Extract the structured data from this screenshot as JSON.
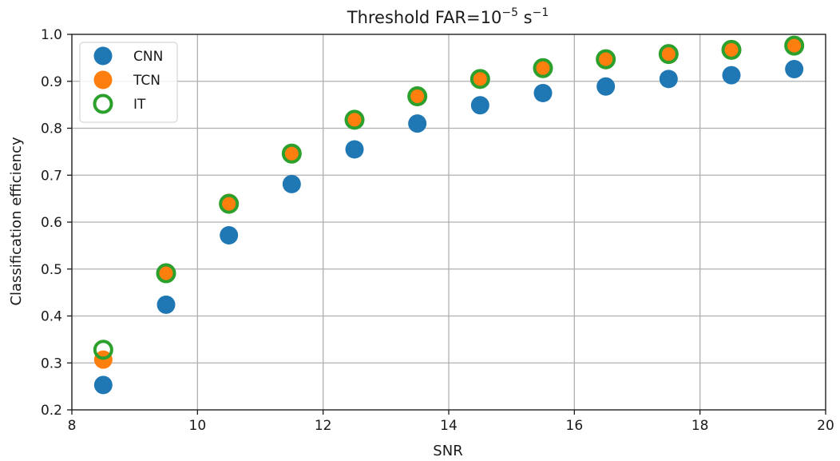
{
  "chart_data": {
    "type": "scatter",
    "title": {
      "prefix": "Threshold FAR=10",
      "exponent": "−5",
      "unit": " s",
      "unit_exponent": "−1"
    },
    "xlabel": "SNR",
    "ylabel": "Classification efficiency",
    "xlim": [
      8,
      20
    ],
    "ylim": [
      0.2,
      1.0
    ],
    "xticks": [
      8,
      10,
      12,
      14,
      16,
      18,
      20
    ],
    "xtick_labels": [
      "8",
      "10",
      "12",
      "14",
      "16",
      "18",
      "20"
    ],
    "yticks": [
      0.2,
      0.3,
      0.4,
      0.5,
      0.6,
      0.7,
      0.8,
      0.9,
      1.0
    ],
    "ytick_labels": [
      "0.2",
      "0.3",
      "0.4",
      "0.5",
      "0.6",
      "0.7",
      "0.8",
      "0.9",
      "1.0"
    ],
    "grid": true,
    "legend_position": "top-left",
    "x": [
      8.5,
      9.5,
      10.5,
      11.5,
      12.5,
      13.5,
      14.5,
      15.5,
      16.5,
      17.5,
      18.5,
      19.5
    ],
    "series": [
      {
        "name": "CNN",
        "marker": "filled-circle",
        "color": "#1f77b4",
        "values": [
          0.253,
          0.424,
          0.572,
          0.681,
          0.755,
          0.81,
          0.849,
          0.875,
          0.889,
          0.905,
          0.913,
          0.926
        ]
      },
      {
        "name": "TCN",
        "marker": "filled-circle",
        "color": "#ff7f0e",
        "values": [
          0.307,
          0.492,
          0.641,
          0.745,
          0.818,
          0.868,
          0.905,
          0.928,
          0.945,
          0.957,
          0.967,
          0.975
        ]
      },
      {
        "name": "IT",
        "marker": "hollow-circle",
        "color": "#2ca02c",
        "values": [
          0.328,
          0.491,
          0.639,
          0.746,
          0.818,
          0.868,
          0.905,
          0.928,
          0.947,
          0.958,
          0.967,
          0.976
        ]
      }
    ]
  }
}
